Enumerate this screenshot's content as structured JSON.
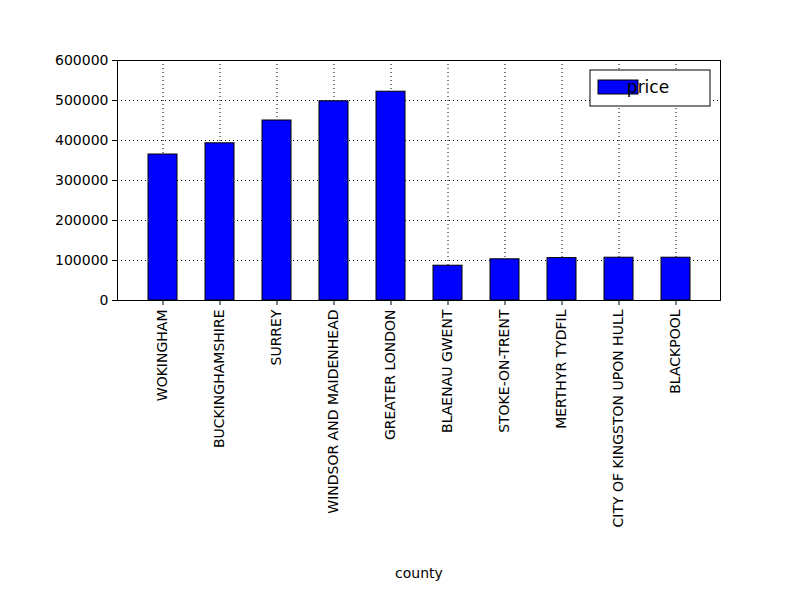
{
  "chart_data": {
    "type": "bar",
    "categories": [
      "WOKINGHAM",
      "BUCKINGHAMSHIRE",
      "SURREY",
      "WINDSOR AND MAIDENHEAD",
      "GREATER LONDON",
      "BLAENAU GWENT",
      "STOKE-ON-TRENT",
      "MERTHYR TYDFIL",
      "CITY OF KINGSTON UPON HULL",
      "BLACKPOOL"
    ],
    "series": [
      {
        "name": "price",
        "color": "#0000ff",
        "values": [
          365000,
          393000,
          450000,
          498000,
          522000,
          87000,
          103000,
          106000,
          107000,
          107000
        ]
      }
    ],
    "x_label": "county",
    "ylim": [
      0,
      600000
    ],
    "yticks": [
      0,
      100000,
      200000,
      300000,
      400000,
      500000,
      600000
    ],
    "grid": true,
    "legend": "upper right"
  }
}
